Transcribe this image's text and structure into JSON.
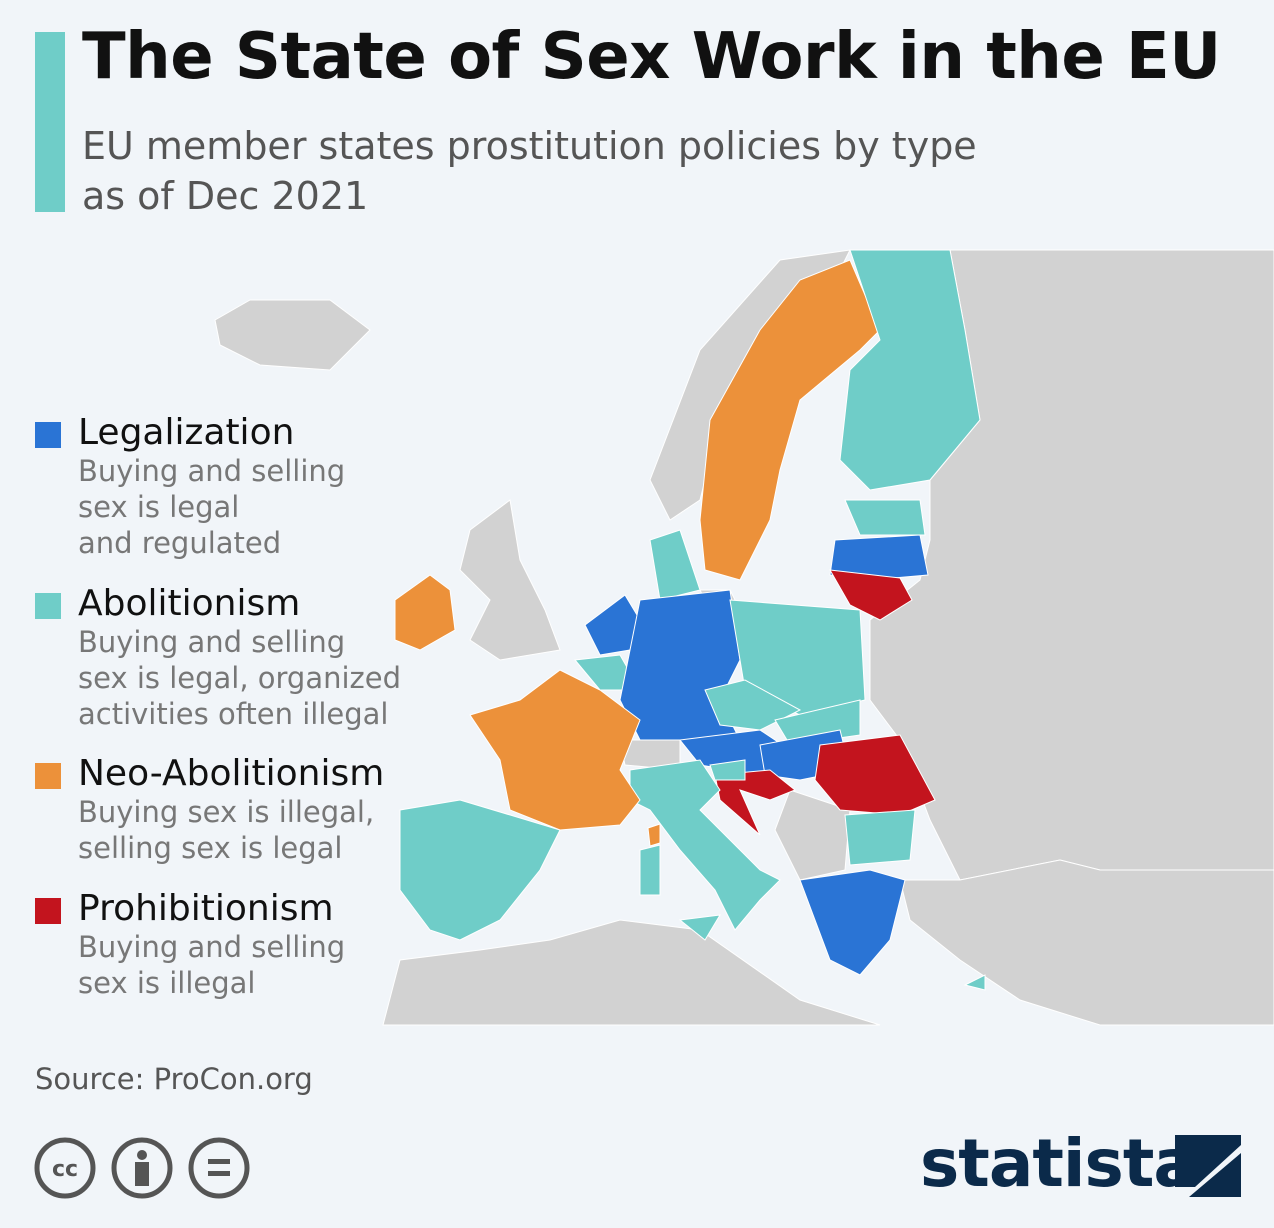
{
  "header": {
    "title": "The State of Sex Work in the EU",
    "subtitle": [
      "EU member states prostitution policies by type",
      "as of Dec 2021"
    ]
  },
  "legend": [
    {
      "name": "Legalization",
      "color": "#2a74d5",
      "description": [
        "Buying and selling",
        "sex is legal",
        "and regulated"
      ]
    },
    {
      "name": "Abolitionism",
      "color": "#6fcdc8",
      "description": [
        "Buying and selling",
        "sex is legal, organized",
        "activities often illegal"
      ]
    },
    {
      "name": "Neo-Abolitionism",
      "color": "#ec913a",
      "description": [
        "Buying sex is illegal,",
        "selling sex is legal"
      ]
    },
    {
      "name": "Prohibitionism",
      "color": "#c3141e",
      "description": [
        "Buying and selling",
        "sex is illegal"
      ]
    }
  ],
  "footer": {
    "source": "Source: ProCon.org",
    "brand": "statista"
  }
}
